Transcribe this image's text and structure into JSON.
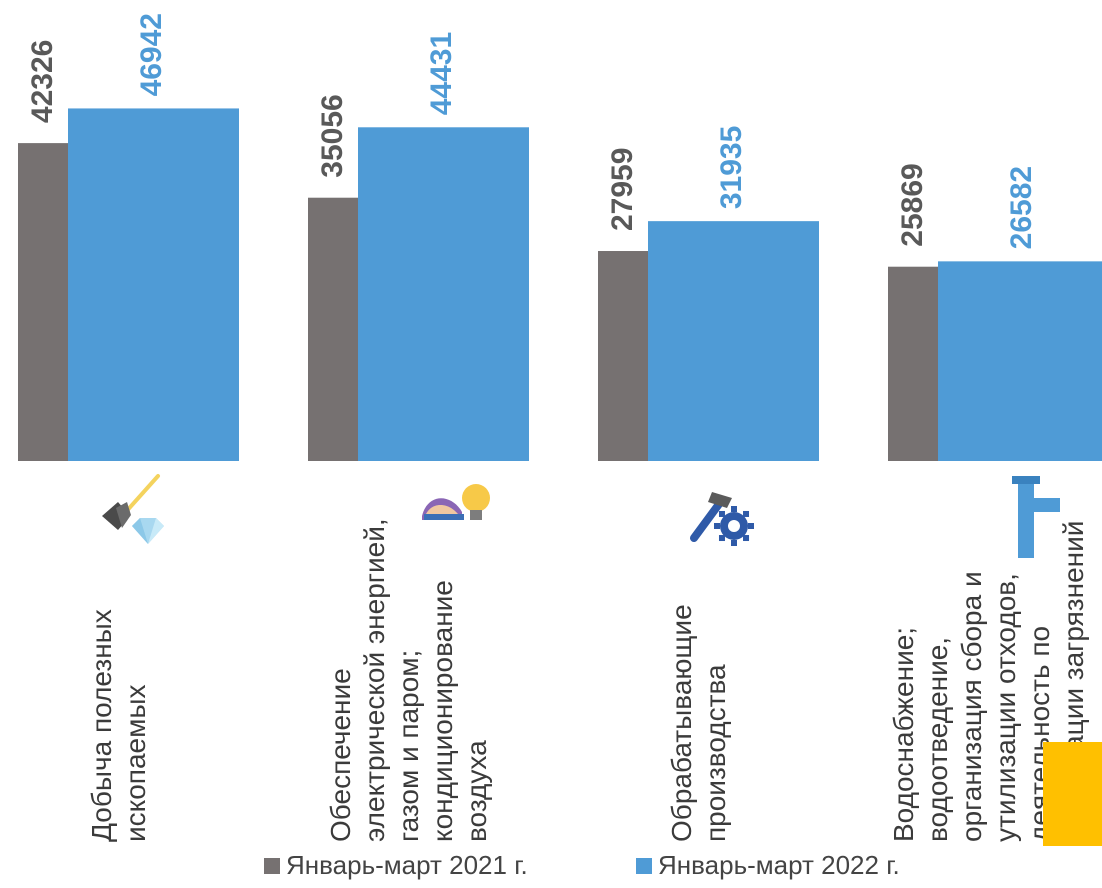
{
  "chart_data": {
    "type": "bar",
    "categories": [
      [
        "Добыча полезных",
        "ископаемых"
      ],
      [
        "Обеспечение",
        "электрической энергией,",
        "газом и паром;",
        "кондиционирование",
        "воздуха"
      ],
      [
        "Обрабатывающие",
        "производства"
      ],
      [
        "Водоснабжение;",
        "водоотведение,",
        "организация сбора и",
        "утилизации отходов,",
        "деятельность по",
        "ликвидации загрязнений"
      ]
    ],
    "category_icons": [
      "shovel-diamond-icon",
      "power-plant-bulb-icon",
      "hammer-gear-icon",
      "water-pipe-icon"
    ],
    "series": [
      {
        "name": "Январь-март 2021 г.",
        "color": "#767171",
        "values": [
          42326,
          35056,
          27959,
          25869
        ],
        "labels": [
          "42326",
          "35056",
          "27959",
          "25869"
        ]
      },
      {
        "name": "Январь-март 2022 г.",
        "color": "#4f9bd6",
        "values": [
          46942,
          44431,
          31935,
          26582
        ],
        "labels": [
          "46942",
          "44431",
          "31935",
          "26582"
        ]
      }
    ],
    "ylim": [
      0,
      47000
    ],
    "grid": false,
    "legend": "bottom",
    "value_label_color_2021": "#595959",
    "value_label_color_2022": "#4f9bd6",
    "overlay_color": "#ffc000"
  }
}
